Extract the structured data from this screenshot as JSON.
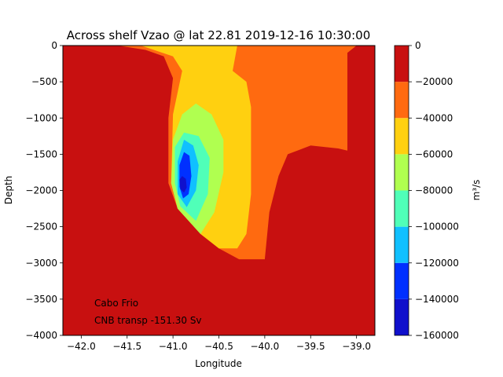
{
  "chart_data": {
    "type": "contourf",
    "title": "Across shelf Vzao @ lat 22.81 2019-12-16 10:30:00",
    "xlabel": "Longitude",
    "ylabel": "Depth",
    "xlim": [
      -42.2,
      -38.8
    ],
    "ylim": [
      -4000,
      0
    ],
    "xticks": [
      -42.0,
      -41.5,
      -41.0,
      -40.5,
      -40.0,
      -39.5,
      -39.0
    ],
    "xtick_labels": [
      "−42.0",
      "−41.5",
      "−41.0",
      "−40.5",
      "−40.0",
      "−39.5",
      "−39.0"
    ],
    "yticks": [
      0,
      -500,
      -1000,
      -1500,
      -2000,
      -2500,
      -3000,
      -3500,
      -4000
    ],
    "ytick_labels": [
      "0",
      "−500",
      "−1000",
      "−1500",
      "−2000",
      "−2500",
      "−3000",
      "−3500",
      "−4000"
    ],
    "colorbar": {
      "label": "m³/s",
      "levels": [
        -160000,
        -140000,
        -120000,
        -100000,
        -80000,
        -60000,
        -40000,
        -20000,
        0
      ],
      "tick_labels": [
        "−160000",
        "−140000",
        "−120000",
        "−100000",
        "−80000",
        "−60000",
        "−40000",
        "−20000",
        "0"
      ],
      "colors": [
        "#1010cc",
        "#0030ff",
        "#10c0ff",
        "#50ffb8",
        "#b0ff50",
        "#ffd010",
        "#ff6a10",
        "#c81010"
      ]
    },
    "annotations": [
      "Cabo Frio",
      "CNB transp -151.30 Sv"
    ],
    "regions": [
      {
        "level_band": [
          -40000,
          -20000
        ],
        "color_index": 6,
        "shape": "outer-plume",
        "outline": [
          [
            -41.6,
            0
          ],
          [
            -39.0,
            0
          ],
          [
            -39.1,
            -100
          ],
          [
            -39.1,
            -1450
          ],
          [
            -39.2,
            -1420
          ],
          [
            -39.5,
            -1380
          ],
          [
            -39.75,
            -1500
          ],
          [
            -39.85,
            -1800
          ],
          [
            -39.95,
            -2300
          ],
          [
            -40.0,
            -2950
          ],
          [
            -40.28,
            -2950
          ],
          [
            -40.5,
            -2800
          ],
          [
            -40.7,
            -2600
          ],
          [
            -40.95,
            -2250
          ],
          [
            -41.05,
            -1900
          ],
          [
            -41.05,
            -1000
          ],
          [
            -41.0,
            -450
          ],
          [
            -41.1,
            -150
          ],
          [
            -41.3,
            -60
          ],
          [
            -41.6,
            0
          ]
        ]
      },
      {
        "level_band": [
          -60000,
          -40000
        ],
        "color_index": 5,
        "shape": "core-plume",
        "outline": [
          [
            -41.35,
            0
          ],
          [
            -40.3,
            0
          ],
          [
            -40.35,
            -350
          ],
          [
            -40.2,
            -500
          ],
          [
            -40.15,
            -850
          ],
          [
            -40.15,
            -2050
          ],
          [
            -40.2,
            -2600
          ],
          [
            -40.3,
            -2800
          ],
          [
            -40.5,
            -2800
          ],
          [
            -40.7,
            -2600
          ],
          [
            -40.95,
            -2250
          ],
          [
            -41.02,
            -1900
          ],
          [
            -41.0,
            -950
          ],
          [
            -40.9,
            -350
          ],
          [
            -41.0,
            -150
          ],
          [
            -41.35,
            0
          ]
        ]
      },
      {
        "level_band": [
          -80000,
          -60000
        ],
        "color_index": 4,
        "shape": "lobe",
        "outline": [
          [
            -40.9,
            -950
          ],
          [
            -40.75,
            -800
          ],
          [
            -40.58,
            -950
          ],
          [
            -40.45,
            -1300
          ],
          [
            -40.45,
            -1750
          ],
          [
            -40.55,
            -2300
          ],
          [
            -40.7,
            -2600
          ],
          [
            -40.95,
            -2250
          ],
          [
            -41.02,
            -1900
          ],
          [
            -41.0,
            -1300
          ]
        ]
      },
      {
        "level_band": [
          -100000,
          -80000
        ],
        "color_index": 3,
        "shape": "lobe",
        "outline": [
          [
            -40.88,
            -1200
          ],
          [
            -40.72,
            -1250
          ],
          [
            -40.6,
            -1550
          ],
          [
            -40.62,
            -2050
          ],
          [
            -40.75,
            -2420
          ],
          [
            -40.92,
            -2220
          ],
          [
            -40.98,
            -1900
          ],
          [
            -40.98,
            -1400
          ]
        ]
      },
      {
        "level_band": [
          -120000,
          -100000
        ],
        "color_index": 2,
        "shape": "lobe",
        "outline": [
          [
            -40.88,
            -1300
          ],
          [
            -40.78,
            -1380
          ],
          [
            -40.72,
            -1650
          ],
          [
            -40.75,
            -2000
          ],
          [
            -40.85,
            -2230
          ],
          [
            -40.95,
            -2050
          ],
          [
            -40.95,
            -1600
          ]
        ]
      },
      {
        "level_band": [
          -140000,
          -120000
        ],
        "color_index": 1,
        "shape": "lobe",
        "outline": [
          [
            -40.88,
            -1470
          ],
          [
            -40.82,
            -1520
          ],
          [
            -40.8,
            -1800
          ],
          [
            -40.83,
            -2050
          ],
          [
            -40.89,
            -2110
          ],
          [
            -40.93,
            -1950
          ],
          [
            -40.93,
            -1650
          ]
        ]
      },
      {
        "level_band": [
          -160000,
          -140000
        ],
        "color_index": 0,
        "shape": "lobe",
        "outline": [
          [
            -40.9,
            -1800
          ],
          [
            -40.86,
            -1840
          ],
          [
            -40.85,
            -1960
          ],
          [
            -40.88,
            -2030
          ],
          [
            -40.92,
            -1980
          ],
          [
            -40.93,
            -1850
          ]
        ]
      }
    ]
  }
}
